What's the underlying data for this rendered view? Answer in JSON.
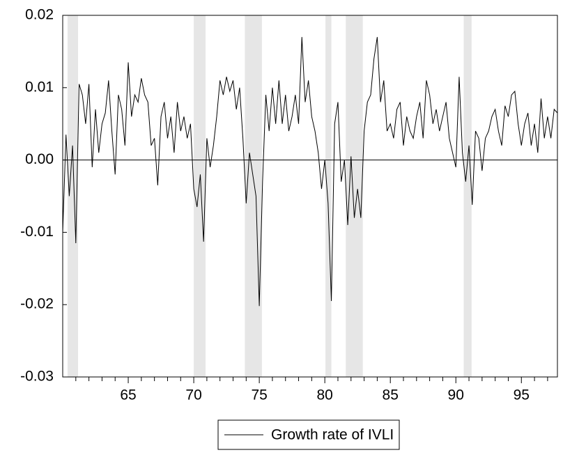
{
  "chart_data": {
    "type": "line",
    "series": [
      {
        "name": "Growth rate of IVLI",
        "color": "#000000",
        "x": [
          60,
          60.25,
          60.5,
          60.75,
          61,
          61.25,
          61.5,
          61.75,
          62,
          62.25,
          62.5,
          62.75,
          63,
          63.25,
          63.5,
          63.75,
          64,
          64.25,
          64.5,
          64.75,
          65,
          65.25,
          65.5,
          65.75,
          66,
          66.25,
          66.5,
          66.75,
          67,
          67.25,
          67.5,
          67.75,
          68,
          68.25,
          68.5,
          68.75,
          69,
          69.25,
          69.5,
          69.75,
          70,
          70.25,
          70.5,
          70.75,
          71,
          71.25,
          71.5,
          71.75,
          72,
          72.25,
          72.5,
          72.75,
          73,
          73.25,
          73.5,
          73.75,
          74,
          74.25,
          74.5,
          74.75,
          75,
          75.25,
          75.5,
          75.75,
          76,
          76.25,
          76.5,
          76.75,
          77,
          77.25,
          77.5,
          77.75,
          78,
          78.25,
          78.5,
          78.75,
          79,
          79.25,
          79.5,
          79.75,
          80,
          80.25,
          80.5,
          80.75,
          81,
          81.25,
          81.5,
          81.75,
          82,
          82.25,
          82.5,
          82.75,
          83,
          83.25,
          83.5,
          83.75,
          84,
          84.25,
          84.5,
          84.75,
          85,
          85.25,
          85.5,
          85.75,
          86,
          86.25,
          86.5,
          86.75,
          87,
          87.25,
          87.5,
          87.75,
          88,
          88.25,
          88.5,
          88.75,
          89,
          89.25,
          89.5,
          89.75,
          90,
          90.25,
          90.5,
          90.75,
          91,
          91.25,
          91.5,
          91.75,
          92,
          92.25,
          92.5,
          92.75,
          93,
          93.25,
          93.5,
          93.75,
          94,
          94.25,
          94.5,
          94.75,
          95,
          95.25,
          95.5,
          95.75,
          96,
          96.25,
          96.5,
          96.75,
          97,
          97.25,
          97.5,
          97.75
        ],
        "values": [
          -0.01,
          0.0035,
          -0.005,
          0.002,
          -0.0115,
          0.0105,
          0.009,
          0.005,
          0.0105,
          -0.001,
          0.007,
          0.001,
          0.005,
          0.0065,
          0.011,
          0.004,
          -0.002,
          0.009,
          0.007,
          0.002,
          0.0135,
          0.006,
          0.009,
          0.008,
          0.0113,
          0.009,
          0.008,
          0.002,
          0.003,
          -0.0035,
          0.006,
          0.008,
          0.003,
          0.006,
          0.001,
          0.008,
          0.004,
          0.006,
          0.003,
          0.005,
          -0.004,
          -0.0065,
          -0.002,
          -0.0113,
          0.003,
          -0.001,
          0.002,
          0.006,
          0.011,
          0.009,
          0.0115,
          0.0095,
          0.011,
          0.007,
          0.01,
          0.003,
          -0.006,
          0.001,
          -0.002,
          -0.005,
          -0.0202,
          -0.003,
          0.009,
          0.004,
          0.01,
          0.005,
          0.011,
          0.005,
          0.009,
          0.004,
          0.006,
          0.009,
          0.005,
          0.017,
          0.008,
          0.011,
          0.006,
          0.004,
          0.001,
          -0.004,
          0,
          -0.006,
          -0.0195,
          0.005,
          0.008,
          -0.003,
          0,
          -0.009,
          0.0005,
          -0.008,
          -0.004,
          -0.008,
          0.004,
          0.008,
          0.009,
          0.014,
          0.017,
          0.008,
          0.011,
          0.004,
          0.005,
          0.003,
          0.007,
          0.008,
          0.002,
          0.006,
          0.004,
          0.003,
          0.006,
          0.008,
          0.003,
          0.011,
          0.009,
          0.005,
          0.007,
          0.004,
          0.006,
          0.008,
          0.003,
          0.001,
          -0.001,
          0.0115,
          0.001,
          -0.003,
          0.002,
          -0.0062,
          0.004,
          0.003,
          -0.0015,
          0.003,
          0.004,
          0.006,
          0.007,
          0.004,
          0.002,
          0.0075,
          0.006,
          0.009,
          0.0095,
          0.005,
          0.002,
          0.005,
          0.0065,
          0.002,
          0.005,
          0.001,
          0.0085,
          0.003,
          0.006,
          0.003,
          0.007,
          0.0065
        ]
      }
    ],
    "xlim": [
      60,
      97.75
    ],
    "xticks": [
      65,
      70,
      75,
      80,
      85,
      90,
      95
    ],
    "minor_xticks": [
      61,
      62,
      63,
      64,
      66,
      67,
      68,
      69,
      71,
      72,
      73,
      74,
      76,
      77,
      78,
      79,
      81,
      82,
      83,
      84,
      86,
      87,
      88,
      89,
      91,
      92,
      93,
      94,
      96,
      97
    ],
    "ylim": [
      -0.03,
      0.02
    ],
    "yticks": [
      -0.03,
      -0.02,
      -0.01,
      {
        "value": 0,
        "label": "0.00"
      },
      0.01,
      0.02
    ],
    "zero_line": true,
    "shaded_periods": [
      [
        60.37,
        61.17
      ],
      [
        70.0,
        70.9
      ],
      [
        73.9,
        75.2
      ],
      [
        80.05,
        80.5
      ],
      [
        81.6,
        82.9
      ],
      [
        90.6,
        91.2
      ]
    ],
    "shade_color": "#e6e6e6",
    "legend": "bottom"
  }
}
